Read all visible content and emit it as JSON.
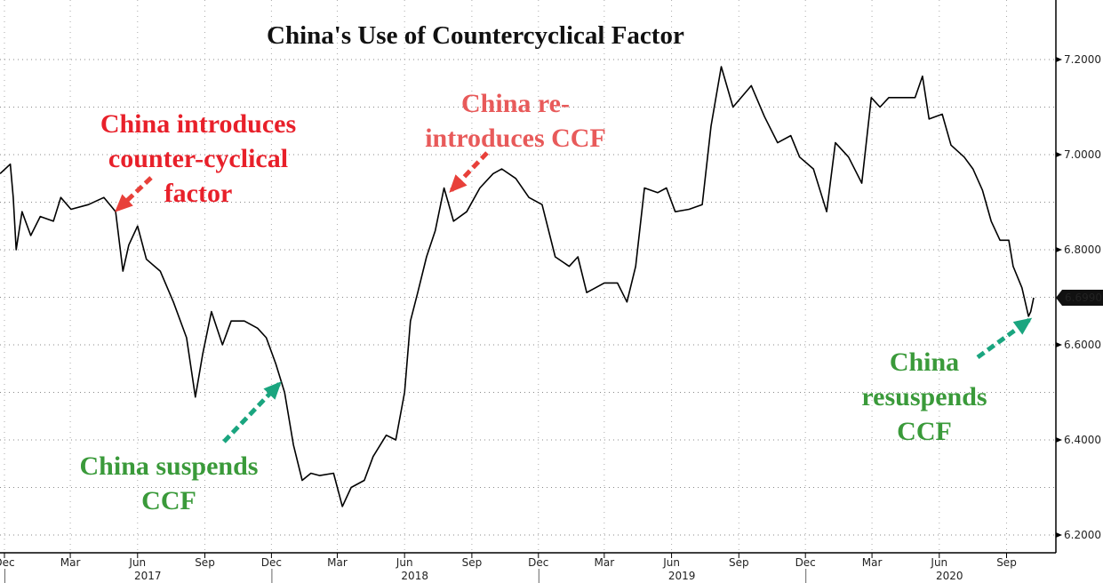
{
  "chart_data": {
    "type": "line",
    "title": "China's Use of Countercyclical Factor",
    "ylim": [
      6.17,
      7.27
    ],
    "yticks": [
      "6.2000",
      "6.4000",
      "6.6000",
      "6.8000",
      "7.0000",
      "7.2000"
    ],
    "y_axis_side": "right",
    "grid": true,
    "last_value_label": "6.6990",
    "xticks": [
      {
        "date": "2016-12-01",
        "label": "Dec"
      },
      {
        "date": "2017-03-01",
        "label": "Mar"
      },
      {
        "date": "2017-06-01",
        "label": "Jun"
      },
      {
        "date": "2017-09-01",
        "label": "Sep"
      },
      {
        "date": "2017-12-01",
        "label": "Dec"
      },
      {
        "date": "2018-03-01",
        "label": "Mar"
      },
      {
        "date": "2018-06-01",
        "label": "Jun"
      },
      {
        "date": "2018-09-01",
        "label": "Sep"
      },
      {
        "date": "2018-12-01",
        "label": "Dec"
      },
      {
        "date": "2019-03-01",
        "label": "Mar"
      },
      {
        "date": "2019-06-01",
        "label": "Jun"
      },
      {
        "date": "2019-09-01",
        "label": "Sep"
      },
      {
        "date": "2019-12-01",
        "label": "Dec"
      },
      {
        "date": "2020-03-01",
        "label": "Mar"
      },
      {
        "date": "2020-06-01",
        "label": "Jun"
      },
      {
        "date": "2020-09-01",
        "label": "Sep"
      }
    ],
    "years": [
      {
        "date": "2017-06-15",
        "label": "2017"
      },
      {
        "date": "2018-06-15",
        "label": "2018"
      },
      {
        "date": "2019-06-15",
        "label": "2019"
      },
      {
        "date": "2020-06-15",
        "label": "2020"
      }
    ],
    "series": [
      {
        "color": "#000000",
        "points": [
          [
            "2016-11-25",
            6.96
          ],
          [
            "2016-12-09",
            6.98
          ],
          [
            "2016-12-13",
            6.91
          ],
          [
            "2016-12-17",
            6.8
          ],
          [
            "2016-12-25",
            6.88
          ],
          [
            "2017-01-06",
            6.83
          ],
          [
            "2017-01-19",
            6.87
          ],
          [
            "2017-02-06",
            6.86
          ],
          [
            "2017-02-16",
            6.91
          ],
          [
            "2017-03-02",
            6.885
          ],
          [
            "2017-03-26",
            6.895
          ],
          [
            "2017-04-16",
            6.91
          ],
          [
            "2017-05-02",
            6.88
          ],
          [
            "2017-05-12",
            6.755
          ],
          [
            "2017-05-20",
            6.81
          ],
          [
            "2017-06-01",
            6.85
          ],
          [
            "2017-06-13",
            6.78
          ],
          [
            "2017-07-02",
            6.755
          ],
          [
            "2017-07-20",
            6.69
          ],
          [
            "2017-08-07",
            6.615
          ],
          [
            "2017-08-19",
            6.49
          ],
          [
            "2017-08-29",
            6.58
          ],
          [
            "2017-09-10",
            6.67
          ],
          [
            "2017-09-25",
            6.6
          ],
          [
            "2017-10-07",
            6.65
          ],
          [
            "2017-10-25",
            6.65
          ],
          [
            "2017-11-12",
            6.635
          ],
          [
            "2017-11-24",
            6.615
          ],
          [
            "2017-12-07",
            6.56
          ],
          [
            "2017-12-19",
            6.5
          ],
          [
            "2017-12-31",
            6.39
          ],
          [
            "2018-01-12",
            6.315
          ],
          [
            "2018-01-24",
            6.33
          ],
          [
            "2018-02-05",
            6.325
          ],
          [
            "2018-02-24",
            6.33
          ],
          [
            "2018-03-08",
            6.26
          ],
          [
            "2018-03-20",
            6.3
          ],
          [
            "2018-04-07",
            6.315
          ],
          [
            "2018-04-19",
            6.365
          ],
          [
            "2018-05-07",
            6.41
          ],
          [
            "2018-05-20",
            6.4
          ],
          [
            "2018-06-01",
            6.5
          ],
          [
            "2018-06-09",
            6.65
          ],
          [
            "2018-06-19",
            6.71
          ],
          [
            "2018-07-01",
            6.785
          ],
          [
            "2018-07-13",
            6.84
          ],
          [
            "2018-07-25",
            6.93
          ],
          [
            "2018-08-07",
            6.86
          ],
          [
            "2018-08-25",
            6.88
          ],
          [
            "2018-09-12",
            6.93
          ],
          [
            "2018-09-30",
            6.96
          ],
          [
            "2018-10-12",
            6.97
          ],
          [
            "2018-10-31",
            6.95
          ],
          [
            "2018-11-18",
            6.91
          ],
          [
            "2018-12-06",
            6.895
          ],
          [
            "2018-12-24",
            6.785
          ],
          [
            "2019-01-12",
            6.765
          ],
          [
            "2019-01-24",
            6.785
          ],
          [
            "2019-02-05",
            6.71
          ],
          [
            "2019-02-17",
            6.72
          ],
          [
            "2019-03-01",
            6.73
          ],
          [
            "2019-03-19",
            6.73
          ],
          [
            "2019-04-01",
            6.69
          ],
          [
            "2019-04-13",
            6.765
          ],
          [
            "2019-04-25",
            6.93
          ],
          [
            "2019-05-13",
            6.92
          ],
          [
            "2019-05-25",
            6.93
          ],
          [
            "2019-06-06",
            6.88
          ],
          [
            "2019-06-25",
            6.885
          ],
          [
            "2019-07-13",
            6.895
          ],
          [
            "2019-07-25",
            7.06
          ],
          [
            "2019-08-08",
            7.185
          ],
          [
            "2019-08-24",
            7.1
          ],
          [
            "2019-09-18",
            7.145
          ],
          [
            "2019-10-06",
            7.08
          ],
          [
            "2019-10-24",
            7.025
          ],
          [
            "2019-11-11",
            7.04
          ],
          [
            "2019-11-23",
            6.995
          ],
          [
            "2019-12-12",
            6.97
          ],
          [
            "2019-12-30",
            6.88
          ],
          [
            "2020-01-11",
            7.025
          ],
          [
            "2020-01-29",
            6.995
          ],
          [
            "2020-02-16",
            6.94
          ],
          [
            "2020-02-29",
            7.12
          ],
          [
            "2020-03-12",
            7.1
          ],
          [
            "2020-03-24",
            7.12
          ],
          [
            "2020-04-11",
            7.12
          ],
          [
            "2020-04-29",
            7.12
          ],
          [
            "2020-05-09",
            7.165
          ],
          [
            "2020-05-18",
            7.075
          ],
          [
            "2020-06-05",
            7.085
          ],
          [
            "2020-06-17",
            7.02
          ],
          [
            "2020-07-05",
            6.995
          ],
          [
            "2020-07-17",
            6.97
          ],
          [
            "2020-07-30",
            6.925
          ],
          [
            "2020-08-11",
            6.86
          ],
          [
            "2020-08-23",
            6.82
          ],
          [
            "2020-09-04",
            6.82
          ],
          [
            "2020-09-10",
            6.765
          ],
          [
            "2020-09-22",
            6.72
          ],
          [
            "2020-10-01",
            6.66
          ],
          [
            "2020-10-04",
            6.67
          ],
          [
            "2020-10-08",
            6.699
          ]
        ]
      }
    ],
    "annotations": [
      {
        "text": "China introduces counter-cyclical factor",
        "color": "#e8202a"
      },
      {
        "text": "China re- introduces CCF",
        "color": "#e85a5a"
      },
      {
        "text": "China suspends CCF",
        "color": "#3a9a3a"
      },
      {
        "text": "China resuspends CCF",
        "color": "#3a9a3a"
      }
    ],
    "arrow_colors": {
      "red": "#e8403a",
      "green": "#1aa57f"
    }
  }
}
